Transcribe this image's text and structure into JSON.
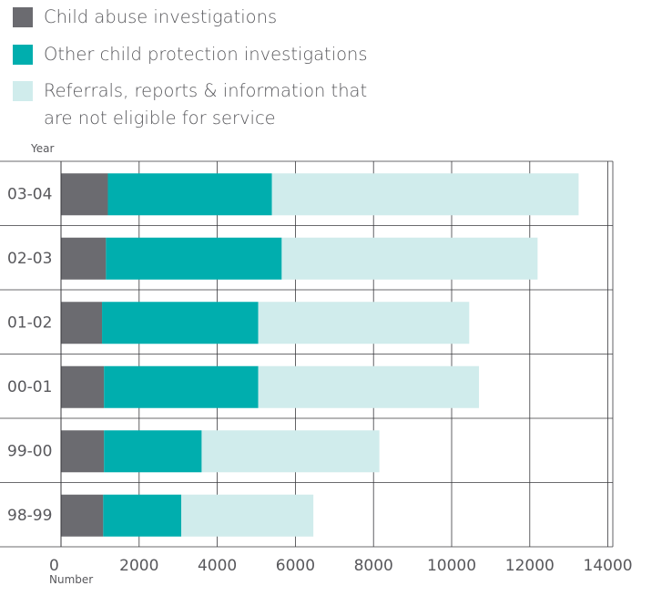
{
  "legend": [
    {
      "label": "Child abuse investigations",
      "color": "#6b6b70"
    },
    {
      "label": "Other child protection investigations",
      "color": "#00aeae"
    },
    {
      "label": "Referrals, reports & information that are not eligible for service",
      "color": "#d0ecec"
    }
  ],
  "chart_data": {
    "type": "bar",
    "orientation": "horizontal",
    "stacked": true,
    "title": "",
    "ylabel": "Year",
    "xlabel": "Number",
    "xlim": [
      0,
      14000
    ],
    "xticks": [
      0,
      2000,
      4000,
      6000,
      8000,
      10000,
      12000,
      14000
    ],
    "xtick_labels": [
      "0",
      "2000",
      "4000",
      "6000",
      "8000",
      "10000",
      "12000",
      "14000"
    ],
    "categories": [
      "03-04",
      "02-03",
      "01-02",
      "00-01",
      "99-00",
      "98-99"
    ],
    "series": [
      {
        "name": "Child abuse investigations",
        "color": "#6b6b70",
        "values": [
          1200,
          1150,
          1050,
          1100,
          1100,
          1080
        ]
      },
      {
        "name": "Other child protection investigations",
        "color": "#00aeae",
        "values": [
          4200,
          4500,
          4000,
          3950,
          2500,
          2000
        ]
      },
      {
        "name": "Referrals, reports & information that are not eligible for service",
        "color": "#d0ecec",
        "values": [
          7850,
          6550,
          5400,
          5650,
          4550,
          3380
        ]
      }
    ],
    "grid": {
      "x": true,
      "y": true
    },
    "legend_position": "top-left"
  }
}
